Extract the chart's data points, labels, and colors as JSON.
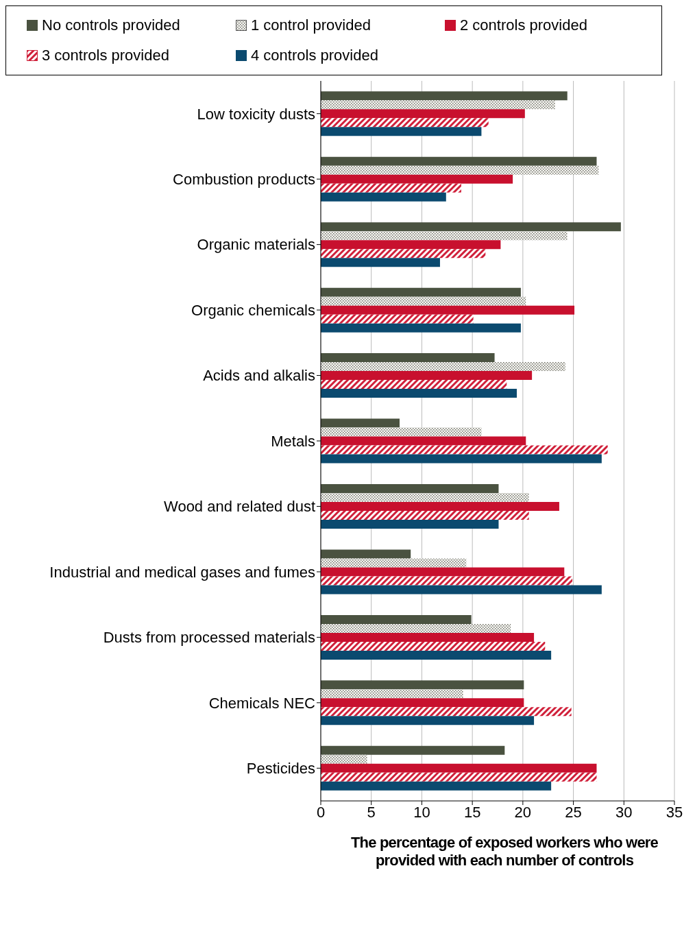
{
  "chart_data": {
    "type": "bar",
    "orientation": "horizontal",
    "xlabel": "The percentage of exposed workers who were provided with each number of controls",
    "categories": [
      "Low toxicity dusts",
      "Combustion products",
      "Organic materials",
      "Organic chemicals",
      "Acids and alkalis",
      "Metals",
      "Wood and related dust",
      "Industrial and medical gases and fumes",
      "Dusts from processed materials",
      "Chemicals NEC",
      "Pesticides"
    ],
    "series": [
      {
        "name": "No controls provided",
        "color": "#4a5240",
        "values": [
          24.4,
          27.3,
          29.7,
          19.8,
          17.2,
          7.8,
          17.6,
          8.9,
          14.9,
          20.1,
          18.2
        ]
      },
      {
        "name": "1 control provided",
        "color": "#c8c8c0",
        "values": [
          23.2,
          27.5,
          24.4,
          20.3,
          24.2,
          15.9,
          20.6,
          14.4,
          18.8,
          14.1,
          4.6
        ]
      },
      {
        "name": "2 controls provided",
        "color": "#c8102e",
        "values": [
          20.2,
          19.0,
          17.8,
          25.1,
          20.9,
          20.3,
          23.6,
          24.1,
          21.1,
          20.1,
          27.3
        ]
      },
      {
        "name": "3 controls provided",
        "color": "#d0203a",
        "values": [
          16.6,
          13.9,
          16.3,
          15.1,
          18.4,
          28.4,
          20.6,
          24.9,
          22.2,
          24.8,
          27.3
        ]
      },
      {
        "name": "4 controls provided",
        "color": "#0b4a6f",
        "values": [
          15.9,
          12.4,
          11.8,
          19.8,
          19.4,
          27.8,
          17.6,
          27.8,
          22.8,
          21.1,
          22.8
        ]
      }
    ],
    "xlim": [
      0,
      35
    ],
    "xticks": [
      0,
      5,
      10,
      15,
      20,
      25,
      30,
      35
    ],
    "grid": "x",
    "legend": "top"
  }
}
